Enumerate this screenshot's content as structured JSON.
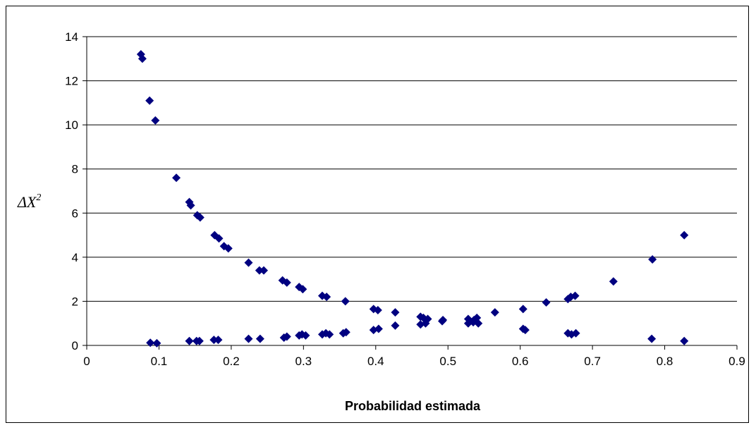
{
  "chart_data": {
    "type": "scatter",
    "title": "",
    "xlabel": "Probabilidad estimada",
    "ylabel": "ΔX",
    "ylabel_superscript": "2",
    "xlim": [
      0,
      0.9
    ],
    "ylim": [
      0,
      14
    ],
    "xticks": [
      "0",
      "0.1",
      "0.2",
      "0.3",
      "0.4",
      "0.5",
      "0.6",
      "0.7",
      "0.8",
      "0.9"
    ],
    "yticks": [
      "0",
      "2",
      "4",
      "6",
      "8",
      "10",
      "12",
      "14"
    ],
    "grid": "horizontal",
    "legend": "none",
    "marker": "diamond",
    "marker_color": "#000080",
    "series": [
      {
        "points": [
          [
            0.075,
            13.2
          ],
          [
            0.077,
            13.0
          ],
          [
            0.087,
            11.1
          ],
          [
            0.095,
            10.2
          ],
          [
            0.124,
            7.6
          ],
          [
            0.142,
            6.5
          ],
          [
            0.144,
            6.35
          ],
          [
            0.153,
            5.9
          ],
          [
            0.157,
            5.8
          ],
          [
            0.177,
            5.0
          ],
          [
            0.183,
            4.85
          ],
          [
            0.19,
            4.5
          ],
          [
            0.196,
            4.4
          ],
          [
            0.224,
            3.75
          ],
          [
            0.239,
            3.4
          ],
          [
            0.245,
            3.4
          ],
          [
            0.271,
            2.95
          ],
          [
            0.277,
            2.85
          ],
          [
            0.294,
            2.65
          ],
          [
            0.299,
            2.55
          ],
          [
            0.326,
            2.25
          ],
          [
            0.332,
            2.2
          ],
          [
            0.358,
            2.0
          ],
          [
            0.397,
            1.65
          ],
          [
            0.403,
            1.6
          ],
          [
            0.427,
            1.5
          ],
          [
            0.462,
            1.3
          ],
          [
            0.466,
            1.25
          ],
          [
            0.472,
            1.2
          ],
          [
            0.493,
            1.15
          ],
          [
            0.528,
            1.2
          ],
          [
            0.536,
            1.15
          ],
          [
            0.54,
            1.25
          ],
          [
            0.565,
            1.5
          ],
          [
            0.604,
            1.65
          ],
          [
            0.636,
            1.95
          ],
          [
            0.666,
            2.1
          ],
          [
            0.67,
            2.2
          ],
          [
            0.676,
            2.25
          ],
          [
            0.729,
            2.9
          ],
          [
            0.783,
            3.9
          ],
          [
            0.827,
            5.0
          ],
          [
            0.088,
            0.12
          ],
          [
            0.097,
            0.1
          ],
          [
            0.142,
            0.2
          ],
          [
            0.152,
            0.2
          ],
          [
            0.156,
            0.2
          ],
          [
            0.176,
            0.25
          ],
          [
            0.182,
            0.25
          ],
          [
            0.224,
            0.3
          ],
          [
            0.24,
            0.3
          ],
          [
            0.273,
            0.35
          ],
          [
            0.277,
            0.4
          ],
          [
            0.294,
            0.45
          ],
          [
            0.298,
            0.5
          ],
          [
            0.303,
            0.45
          ],
          [
            0.326,
            0.5
          ],
          [
            0.331,
            0.55
          ],
          [
            0.336,
            0.5
          ],
          [
            0.355,
            0.55
          ],
          [
            0.359,
            0.6
          ],
          [
            0.397,
            0.7
          ],
          [
            0.404,
            0.75
          ],
          [
            0.427,
            0.9
          ],
          [
            0.462,
            0.95
          ],
          [
            0.469,
            1.0
          ],
          [
            0.492,
            1.1
          ],
          [
            0.528,
            1.0
          ],
          [
            0.535,
            1.05
          ],
          [
            0.542,
            1.0
          ],
          [
            0.604,
            0.75
          ],
          [
            0.607,
            0.7
          ],
          [
            0.666,
            0.55
          ],
          [
            0.671,
            0.5
          ],
          [
            0.677,
            0.55
          ],
          [
            0.782,
            0.3
          ],
          [
            0.827,
            0.2
          ]
        ]
      }
    ]
  }
}
